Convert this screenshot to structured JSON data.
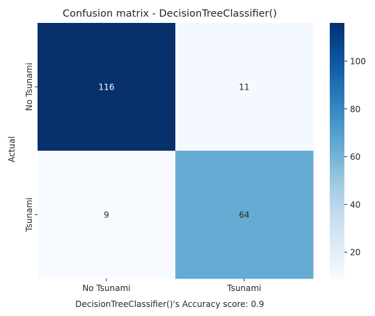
{
  "chart_data": {
    "type": "heatmap",
    "title": "Confusion matrix - DecisionTreeClassifier()",
    "xlabel": "DecisionTreeClassifier()'s Accuracy score:  0.9",
    "ylabel": "Actual",
    "x_categories": [
      "No Tsunami",
      "Tsunami"
    ],
    "y_categories": [
      "No Tsunami",
      "Tsunami"
    ],
    "values": [
      [
        116,
        11
      ],
      [
        9,
        64
      ]
    ],
    "colormap": "Blues",
    "color_range": [
      9,
      116
    ],
    "colorbar_ticks": [
      20,
      40,
      60,
      80,
      100
    ]
  }
}
